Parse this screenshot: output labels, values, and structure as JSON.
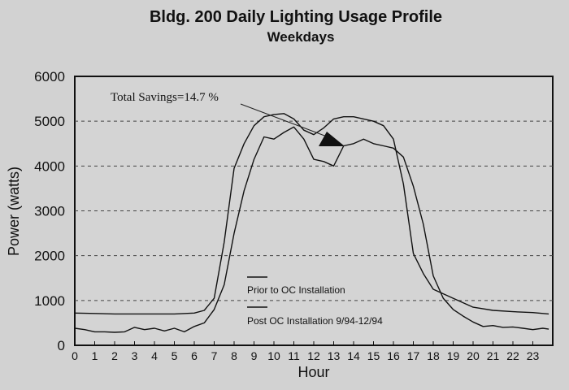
{
  "chart_data": {
    "type": "line",
    "title": "Bldg. 200 Daily Lighting Usage Profile",
    "subtitle": "Weekdays",
    "xlabel": "Hour",
    "ylabel": "Power (watts)",
    "xlim": [
      0,
      24
    ],
    "ylim": [
      0,
      6000
    ],
    "xticks": [
      "0",
      "1",
      "2",
      "3",
      "4",
      "5",
      "6",
      "7",
      "8",
      "9",
      "10",
      "11",
      "12",
      "13",
      "14",
      "15",
      "16",
      "17",
      "18",
      "19",
      "20",
      "21",
      "22",
      "23"
    ],
    "yticks": [
      "0",
      "1000",
      "2000",
      "3000",
      "4000",
      "5000",
      "6000"
    ],
    "grid": "horizontal dashed",
    "legend_placement": "lower-center",
    "annotation": "Total Savings=14.7 %",
    "series": [
      {
        "name": "Prior to OC Installation",
        "color": "#111111",
        "x": [
          0,
          1,
          2,
          3,
          4,
          5,
          6,
          6.5,
          7,
          7.5,
          8,
          8.5,
          9,
          9.5,
          10,
          10.5,
          11,
          11.5,
          12,
          12.5,
          13,
          13.5,
          14,
          14.5,
          15,
          15.5,
          16,
          16.5,
          17,
          17.5,
          18,
          19,
          20,
          21,
          22,
          23,
          23.8
        ],
        "y": [
          720,
          710,
          700,
          700,
          700,
          700,
          720,
          780,
          1050,
          2300,
          3950,
          4500,
          4900,
          5100,
          5150,
          5170,
          5050,
          4800,
          4700,
          4850,
          5050,
          5100,
          5100,
          5050,
          5000,
          4900,
          4600,
          3600,
          2050,
          1600,
          1250,
          1050,
          850,
          780,
          750,
          730,
          700
        ]
      },
      {
        "name": "Post OC Installation 9/94-12/94",
        "color": "#111111",
        "x": [
          0,
          0.5,
          1,
          1.5,
          2,
          2.5,
          3,
          3.5,
          4,
          4.5,
          5,
          5.5,
          6,
          6.5,
          7,
          7.5,
          8,
          8.5,
          9,
          9.5,
          10,
          10.5,
          11,
          11.5,
          12,
          12.5,
          13,
          13.5,
          14,
          14.5,
          15,
          15.5,
          16,
          16.5,
          17,
          17.5,
          18,
          18.5,
          19,
          19.5,
          20,
          20.5,
          21,
          21.5,
          22,
          22.5,
          23,
          23.5,
          23.8
        ],
        "y": [
          380,
          350,
          300,
          300,
          290,
          300,
          400,
          350,
          380,
          320,
          380,
          300,
          420,
          500,
          800,
          1350,
          2500,
          3450,
          4150,
          4650,
          4600,
          4750,
          4870,
          4600,
          4150,
          4100,
          4000,
          4450,
          4500,
          4600,
          4500,
          4450,
          4400,
          4200,
          3550,
          2700,
          1550,
          1050,
          800,
          650,
          520,
          420,
          440,
          400,
          410,
          380,
          350,
          380,
          360
        ]
      }
    ]
  }
}
